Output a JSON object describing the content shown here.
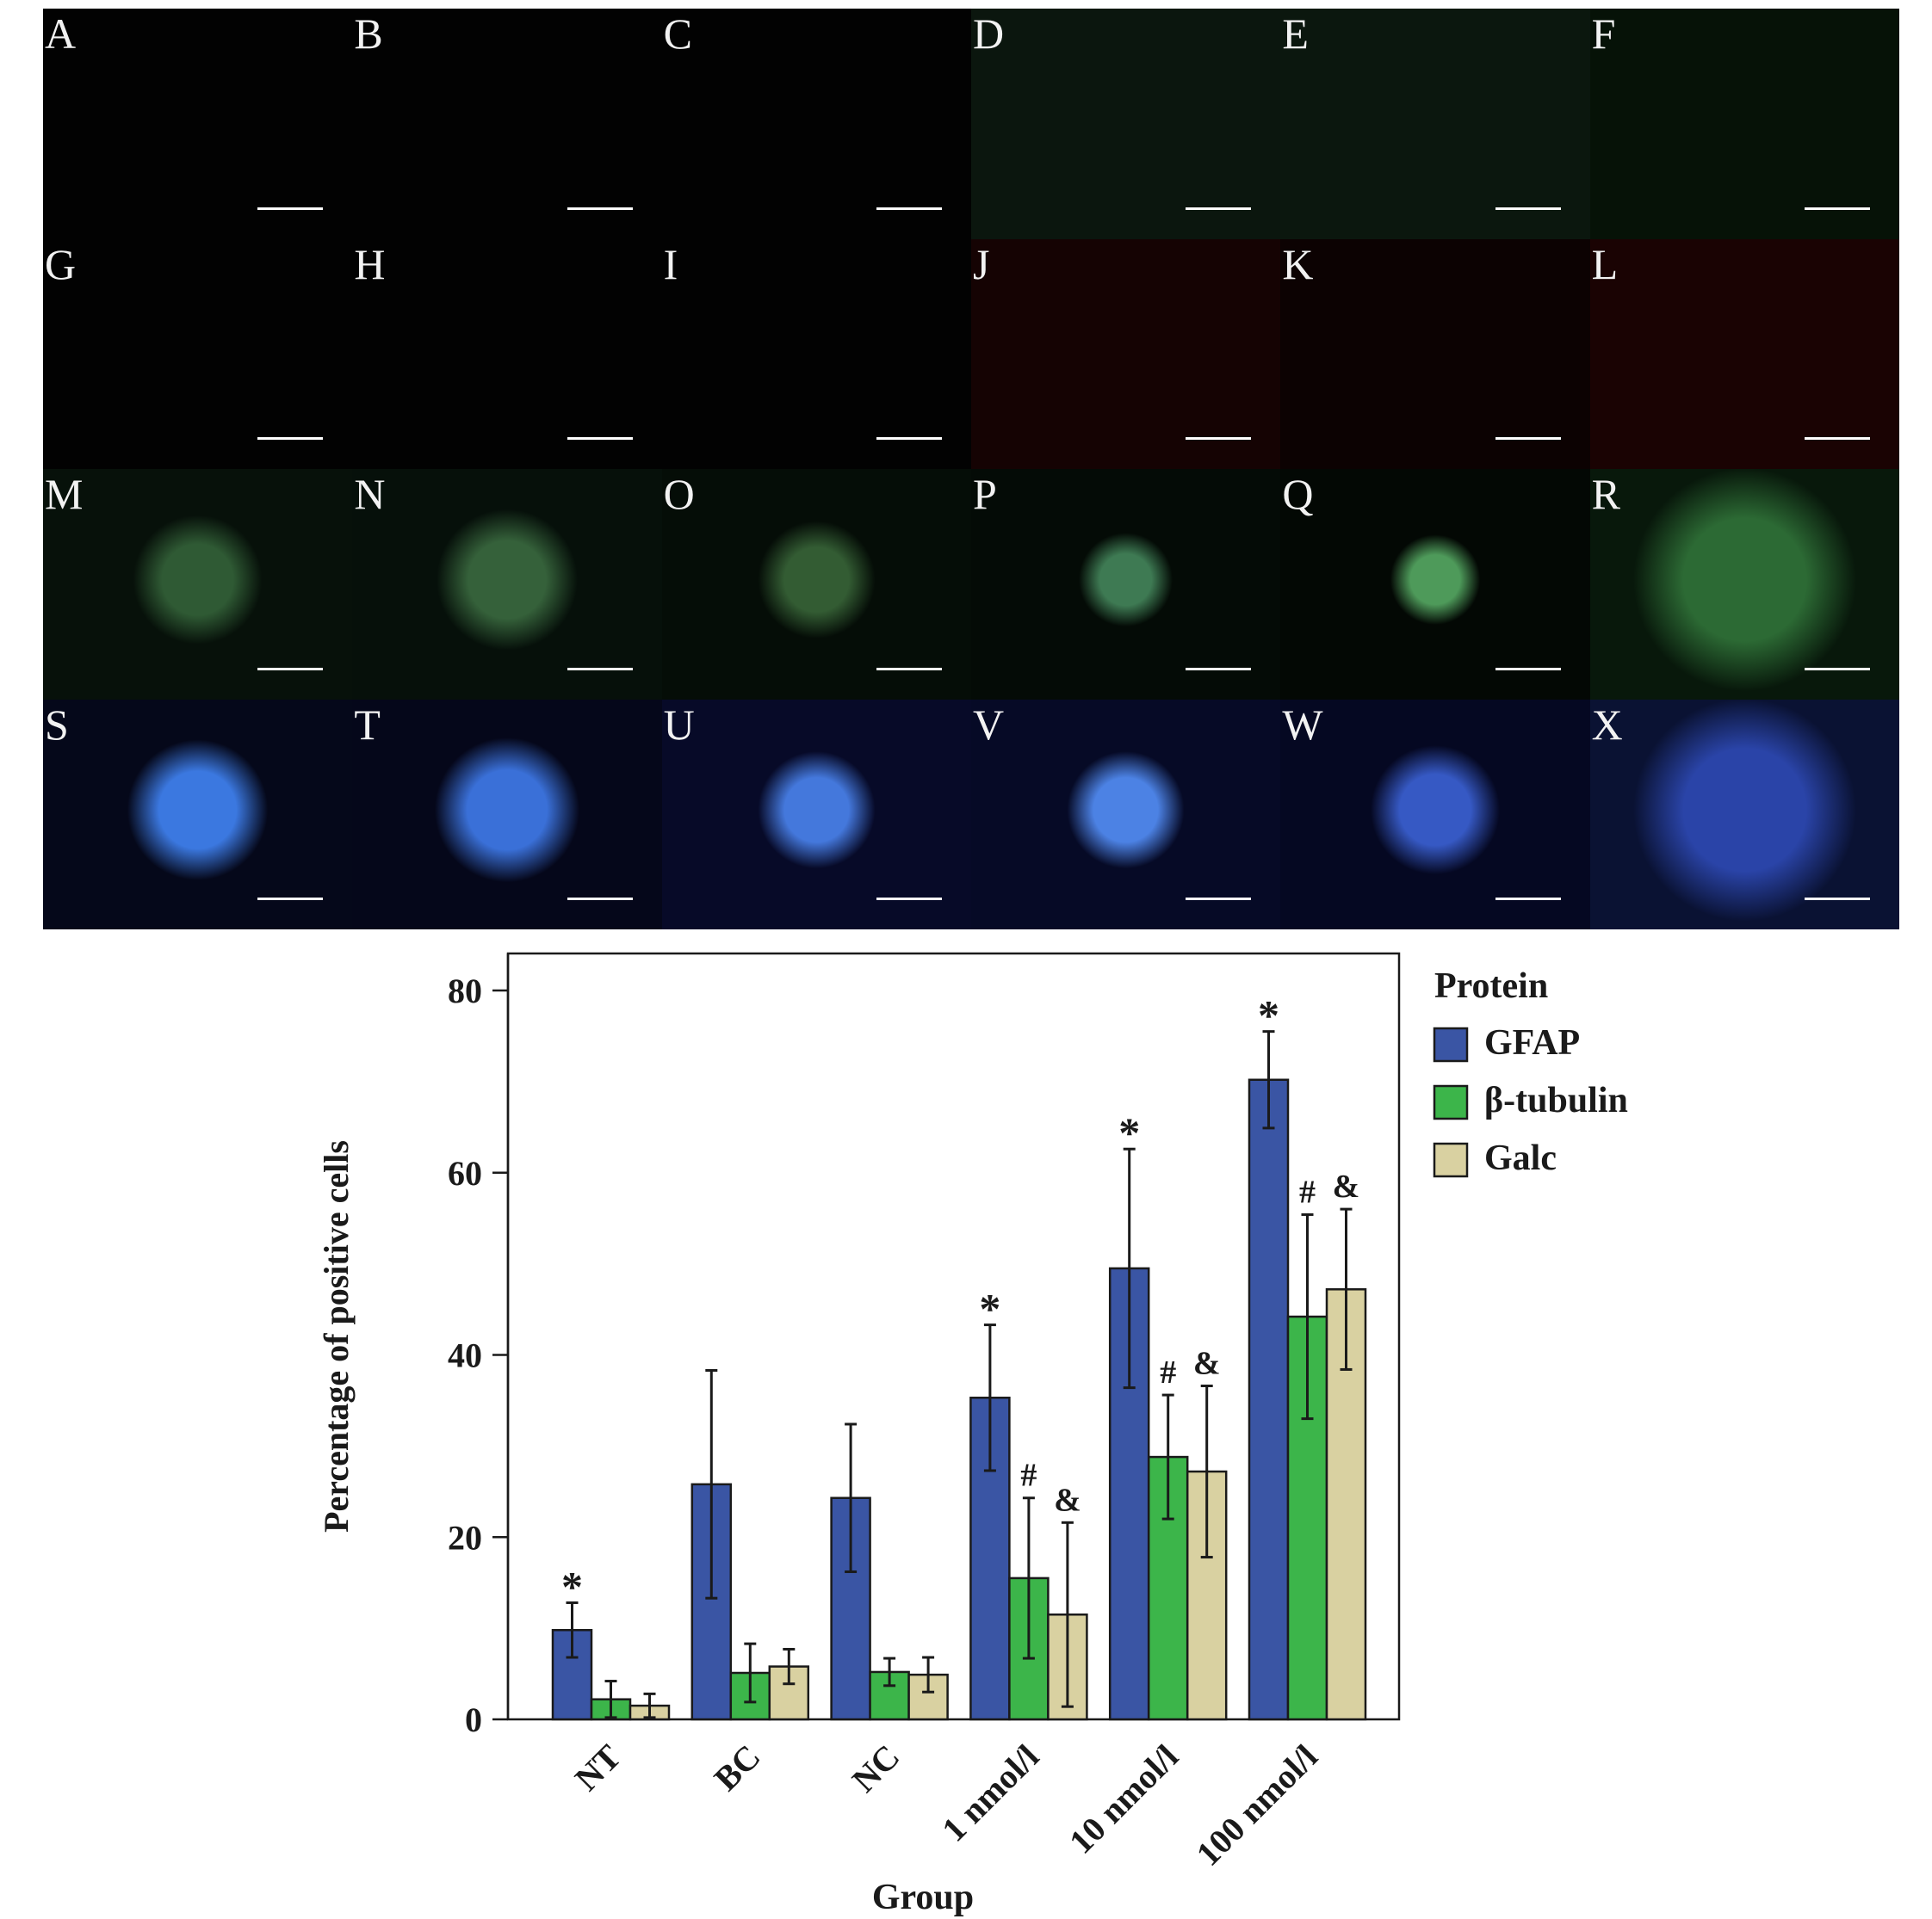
{
  "micrograph_panels": [
    {
      "label": "A",
      "tone": "#020202",
      "blobs": []
    },
    {
      "label": "B",
      "tone": "#020202",
      "blobs": []
    },
    {
      "label": "C",
      "tone": "#020202",
      "blobs": []
    },
    {
      "label": "D",
      "tone": "#0b160e",
      "blobs": []
    },
    {
      "label": "E",
      "tone": "#0b170e",
      "blobs": []
    },
    {
      "label": "F",
      "tone": "#061207",
      "blobs": []
    },
    {
      "label": "G",
      "tone": "#020202",
      "blobs": []
    },
    {
      "label": "H",
      "tone": "#020202",
      "blobs": []
    },
    {
      "label": "I",
      "tone": "#020202",
      "blobs": []
    },
    {
      "label": "J",
      "tone": "#150303",
      "blobs": []
    },
    {
      "label": "K",
      "tone": "#0c0202",
      "blobs": []
    },
    {
      "label": "L",
      "tone": "#1a0303",
      "blobs": []
    },
    {
      "label": "M",
      "tone": "#07110a",
      "blobs": [
        {
          "color": "#2f5a34",
          "size": 0.55
        }
      ]
    },
    {
      "label": "N",
      "tone": "#06100a",
      "blobs": [
        {
          "color": "#35613a",
          "size": 0.6
        }
      ]
    },
    {
      "label": "O",
      "tone": "#050d07",
      "blobs": [
        {
          "color": "#335c33",
          "size": 0.5
        }
      ]
    },
    {
      "label": "P",
      "tone": "#040b06",
      "blobs": [
        {
          "color": "#3e7a53",
          "size": 0.4
        }
      ]
    },
    {
      "label": "Q",
      "tone": "#030804",
      "blobs": [
        {
          "color": "#4e9a5a",
          "size": 0.38
        }
      ]
    },
    {
      "label": "R",
      "tone": "#08180b",
      "blobs": [
        {
          "color": "#2c6a34",
          "size": 0.95
        }
      ]
    },
    {
      "label": "S",
      "tone": "#05081a",
      "blobs": [
        {
          "color": "#3b78e0",
          "size": 0.6
        }
      ]
    },
    {
      "label": "T",
      "tone": "#05071a",
      "blobs": [
        {
          "color": "#3a70d8",
          "size": 0.62
        }
      ]
    },
    {
      "label": "U",
      "tone": "#070a28",
      "blobs": [
        {
          "color": "#4478dc",
          "size": 0.5
        }
      ]
    },
    {
      "label": "V",
      "tone": "#060a26",
      "blobs": [
        {
          "color": "#4c82e4",
          "size": 0.5
        }
      ]
    },
    {
      "label": "W",
      "tone": "#050822",
      "blobs": [
        {
          "color": "#3659c4",
          "size": 0.55
        }
      ]
    },
    {
      "label": "X",
      "tone": "#0a1233",
      "blobs": [
        {
          "color": "#2a44a8",
          "size": 0.95
        }
      ]
    }
  ],
  "chart_data": {
    "type": "bar",
    "categories": [
      "NT",
      "BC",
      "NC",
      "1 nmol/l",
      "10 nmol/l",
      "100 nmol/l"
    ],
    "series": [
      {
        "name": "GFAP",
        "color": "#3a55a4",
        "values": [
          9.8,
          25.8,
          24.3,
          35.3,
          49.5,
          70.2
        ],
        "errors": [
          3.0,
          12.5,
          8.1,
          8.0,
          13.1,
          5.3
        ],
        "annotations": [
          "*",
          "",
          "",
          "*",
          "*",
          "*"
        ]
      },
      {
        "name": "β-tubulin",
        "color": "#3cb54a",
        "values": [
          2.2,
          5.1,
          5.2,
          15.5,
          28.8,
          44.2
        ],
        "errors": [
          2.0,
          3.2,
          1.5,
          8.8,
          6.8,
          11.2
        ],
        "annotations": [
          "",
          "",
          "",
          "#",
          "#",
          "#"
        ]
      },
      {
        "name": "Galc",
        "color": "#d9d1a1",
        "values": [
          1.5,
          5.8,
          4.9,
          11.5,
          27.2,
          47.2
        ],
        "errors": [
          1.3,
          1.9,
          1.9,
          10.1,
          9.4,
          8.8
        ],
        "annotations": [
          "",
          "",
          "",
          "&",
          "&",
          "&"
        ]
      }
    ],
    "title": "",
    "xlabel": "Group",
    "ylabel": "Percentage of positive cells",
    "ylim": [
      0,
      84
    ],
    "yticks": [
      0,
      20,
      40,
      60,
      80
    ],
    "legend": {
      "title": "Protein",
      "placement": "right-outside"
    },
    "grid": false
  }
}
